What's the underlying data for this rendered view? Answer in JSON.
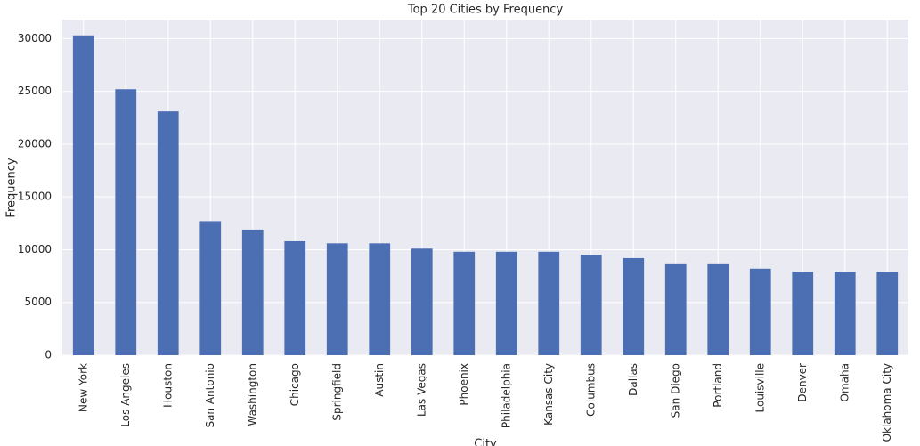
{
  "chart_data": {
    "type": "bar",
    "title": "Top 20 Cities by Frequency",
    "x_label": "City",
    "y_label": "Frequency",
    "categories": [
      "New York",
      "Los Angeles",
      "Houston",
      "San Antonio",
      "Washington",
      "Chicago",
      "Springfield",
      "Austin",
      "Las Vegas",
      "Phoenix",
      "Philadelphia",
      "Kansas City",
      "Columbus",
      "Dallas",
      "San Diego",
      "Portland",
      "Louisville",
      "Denver",
      "Omaha",
      "Oklahoma City"
    ],
    "values": [
      30300,
      25200,
      23100,
      12700,
      11900,
      10800,
      10600,
      10600,
      10100,
      9800,
      9800,
      9800,
      9500,
      9200,
      8700,
      8700,
      8200,
      7900,
      7900,
      7900
    ],
    "color": "#4c6fb4",
    "ylim": [
      0,
      31800
    ],
    "yticks": [
      0,
      5000,
      10000,
      15000,
      20000,
      25000,
      30000
    ],
    "grid": true
  }
}
